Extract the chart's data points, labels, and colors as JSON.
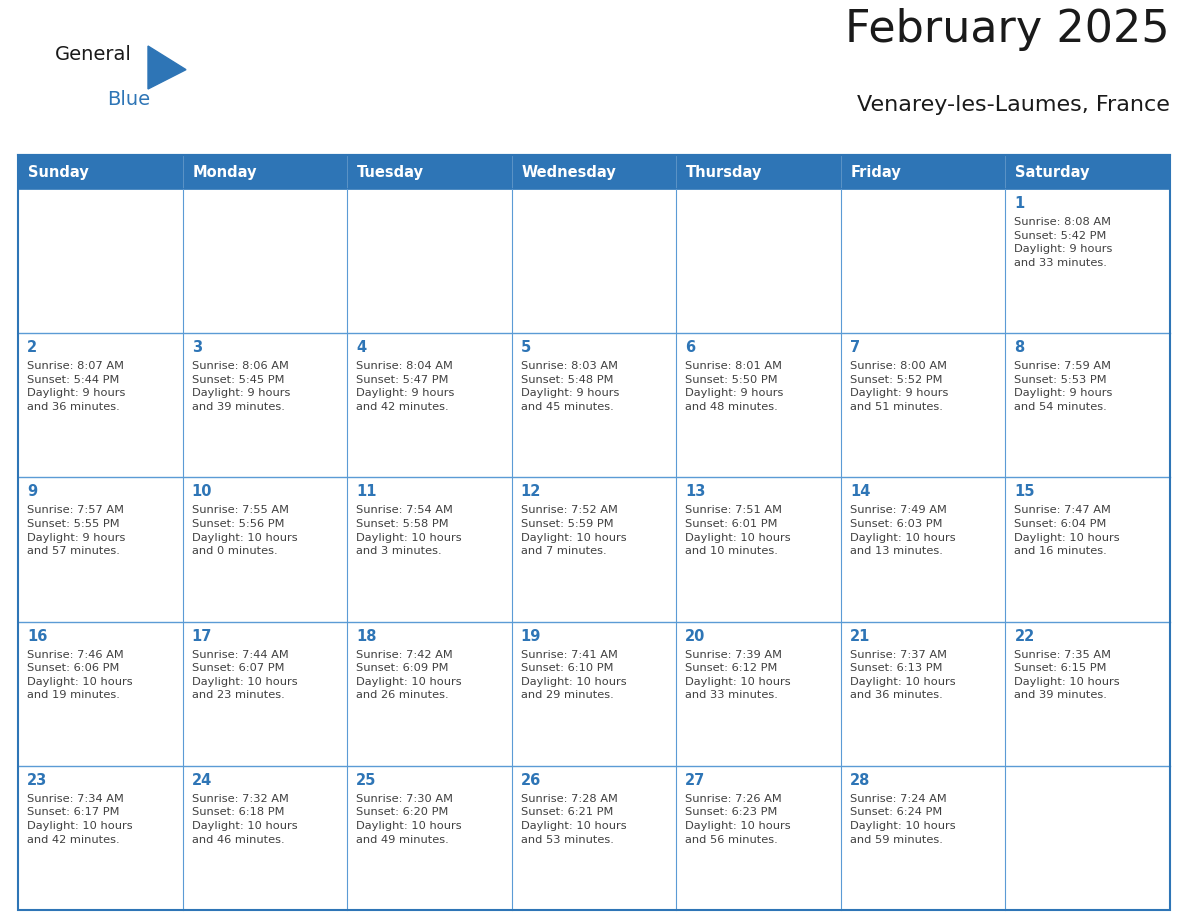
{
  "title": "February 2025",
  "subtitle": "Venarey-les-Laumes, France",
  "days_of_week": [
    "Sunday",
    "Monday",
    "Tuesday",
    "Wednesday",
    "Thursday",
    "Friday",
    "Saturday"
  ],
  "header_bg": "#2E75B6",
  "header_text_color": "#FFFFFF",
  "cell_bg_white": "#FFFFFF",
  "cell_bg_gray": "#F2F2F2",
  "border_color": "#2E75B6",
  "inner_border_color": "#5B9BD5",
  "day_number_color": "#2E75B6",
  "info_text_color": "#404040",
  "title_color": "#1a1a1a",
  "subtitle_color": "#1a1a1a",
  "logo_general_color": "#1a1a1a",
  "logo_blue_color": "#2E75B6",
  "week_rows": [
    {
      "cells": [
        {
          "day": "",
          "info": ""
        },
        {
          "day": "",
          "info": ""
        },
        {
          "day": "",
          "info": ""
        },
        {
          "day": "",
          "info": ""
        },
        {
          "day": "",
          "info": ""
        },
        {
          "day": "",
          "info": ""
        },
        {
          "day": "1",
          "info": "Sunrise: 8:08 AM\nSunset: 5:42 PM\nDaylight: 9 hours\nand 33 minutes."
        }
      ]
    },
    {
      "cells": [
        {
          "day": "2",
          "info": "Sunrise: 8:07 AM\nSunset: 5:44 PM\nDaylight: 9 hours\nand 36 minutes."
        },
        {
          "day": "3",
          "info": "Sunrise: 8:06 AM\nSunset: 5:45 PM\nDaylight: 9 hours\nand 39 minutes."
        },
        {
          "day": "4",
          "info": "Sunrise: 8:04 AM\nSunset: 5:47 PM\nDaylight: 9 hours\nand 42 minutes."
        },
        {
          "day": "5",
          "info": "Sunrise: 8:03 AM\nSunset: 5:48 PM\nDaylight: 9 hours\nand 45 minutes."
        },
        {
          "day": "6",
          "info": "Sunrise: 8:01 AM\nSunset: 5:50 PM\nDaylight: 9 hours\nand 48 minutes."
        },
        {
          "day": "7",
          "info": "Sunrise: 8:00 AM\nSunset: 5:52 PM\nDaylight: 9 hours\nand 51 minutes."
        },
        {
          "day": "8",
          "info": "Sunrise: 7:59 AM\nSunset: 5:53 PM\nDaylight: 9 hours\nand 54 minutes."
        }
      ]
    },
    {
      "cells": [
        {
          "day": "9",
          "info": "Sunrise: 7:57 AM\nSunset: 5:55 PM\nDaylight: 9 hours\nand 57 minutes."
        },
        {
          "day": "10",
          "info": "Sunrise: 7:55 AM\nSunset: 5:56 PM\nDaylight: 10 hours\nand 0 minutes."
        },
        {
          "day": "11",
          "info": "Sunrise: 7:54 AM\nSunset: 5:58 PM\nDaylight: 10 hours\nand 3 minutes."
        },
        {
          "day": "12",
          "info": "Sunrise: 7:52 AM\nSunset: 5:59 PM\nDaylight: 10 hours\nand 7 minutes."
        },
        {
          "day": "13",
          "info": "Sunrise: 7:51 AM\nSunset: 6:01 PM\nDaylight: 10 hours\nand 10 minutes."
        },
        {
          "day": "14",
          "info": "Sunrise: 7:49 AM\nSunset: 6:03 PM\nDaylight: 10 hours\nand 13 minutes."
        },
        {
          "day": "15",
          "info": "Sunrise: 7:47 AM\nSunset: 6:04 PM\nDaylight: 10 hours\nand 16 minutes."
        }
      ]
    },
    {
      "cells": [
        {
          "day": "16",
          "info": "Sunrise: 7:46 AM\nSunset: 6:06 PM\nDaylight: 10 hours\nand 19 minutes."
        },
        {
          "day": "17",
          "info": "Sunrise: 7:44 AM\nSunset: 6:07 PM\nDaylight: 10 hours\nand 23 minutes."
        },
        {
          "day": "18",
          "info": "Sunrise: 7:42 AM\nSunset: 6:09 PM\nDaylight: 10 hours\nand 26 minutes."
        },
        {
          "day": "19",
          "info": "Sunrise: 7:41 AM\nSunset: 6:10 PM\nDaylight: 10 hours\nand 29 minutes."
        },
        {
          "day": "20",
          "info": "Sunrise: 7:39 AM\nSunset: 6:12 PM\nDaylight: 10 hours\nand 33 minutes."
        },
        {
          "day": "21",
          "info": "Sunrise: 7:37 AM\nSunset: 6:13 PM\nDaylight: 10 hours\nand 36 minutes."
        },
        {
          "day": "22",
          "info": "Sunrise: 7:35 AM\nSunset: 6:15 PM\nDaylight: 10 hours\nand 39 minutes."
        }
      ]
    },
    {
      "cells": [
        {
          "day": "23",
          "info": "Sunrise: 7:34 AM\nSunset: 6:17 PM\nDaylight: 10 hours\nand 42 minutes."
        },
        {
          "day": "24",
          "info": "Sunrise: 7:32 AM\nSunset: 6:18 PM\nDaylight: 10 hours\nand 46 minutes."
        },
        {
          "day": "25",
          "info": "Sunrise: 7:30 AM\nSunset: 6:20 PM\nDaylight: 10 hours\nand 49 minutes."
        },
        {
          "day": "26",
          "info": "Sunrise: 7:28 AM\nSunset: 6:21 PM\nDaylight: 10 hours\nand 53 minutes."
        },
        {
          "day": "27",
          "info": "Sunrise: 7:26 AM\nSunset: 6:23 PM\nDaylight: 10 hours\nand 56 minutes."
        },
        {
          "day": "28",
          "info": "Sunrise: 7:24 AM\nSunset: 6:24 PM\nDaylight: 10 hours\nand 59 minutes."
        },
        {
          "day": "",
          "info": ""
        }
      ]
    }
  ]
}
